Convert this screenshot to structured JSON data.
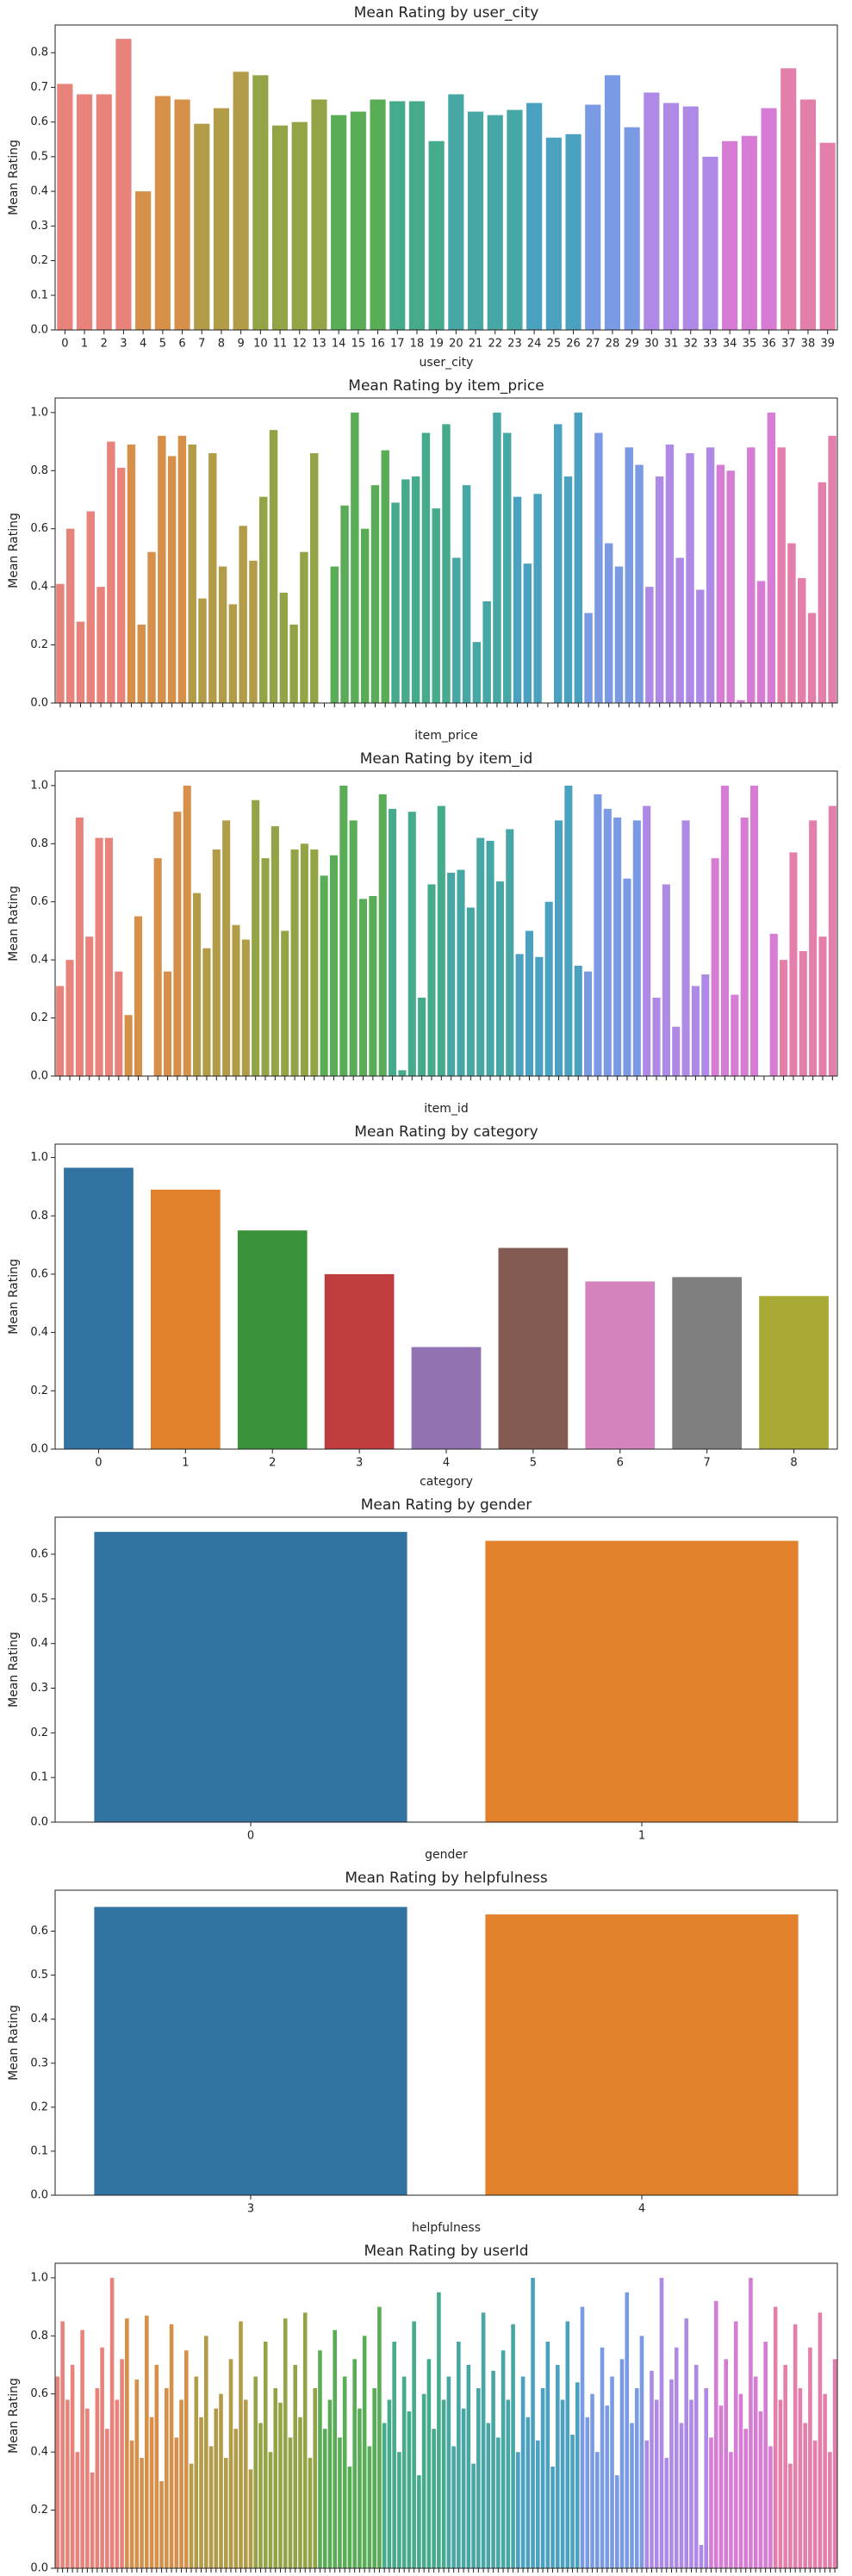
{
  "chart_data": [
    {
      "type": "bar",
      "title": "Mean Rating by user_city",
      "xlabel": "user_city",
      "ylabel": "Mean Rating",
      "categories": [
        "0",
        "1",
        "2",
        "3",
        "4",
        "5",
        "6",
        "7",
        "8",
        "9",
        "10",
        "11",
        "12",
        "13",
        "14",
        "15",
        "16",
        "17",
        "18",
        "19",
        "20",
        "21",
        "22",
        "23",
        "24",
        "25",
        "26",
        "27",
        "28",
        "29",
        "30",
        "31",
        "32",
        "33",
        "34",
        "35",
        "36",
        "37",
        "38",
        "39"
      ],
      "values": [
        0.71,
        0.68,
        0.68,
        0.84,
        0.4,
        0.675,
        0.665,
        0.595,
        0.64,
        0.745,
        0.735,
        0.59,
        0.6,
        0.665,
        0.62,
        0.63,
        0.665,
        0.66,
        0.66,
        0.545,
        0.68,
        0.63,
        0.62,
        0.635,
        0.655,
        0.555,
        0.565,
        0.65,
        0.735,
        0.585,
        0.685,
        0.655,
        0.645,
        0.5,
        0.545,
        0.56,
        0.64,
        0.755,
        0.665,
        0.54
      ],
      "ylim": [
        0,
        0.88
      ],
      "yticks": [
        {
          "value": 0,
          "label": "0.0"
        },
        0.1,
        0.2,
        0.3,
        0.4,
        0.5,
        0.6,
        0.7,
        0.8
      ],
      "palette": [
        "#e8837b",
        "#d6904a",
        "#b29c48",
        "#93a446",
        "#5aad57",
        "#45ab8c",
        "#47a7a5",
        "#4aa2c0",
        "#7a9be3",
        "#ae8ae6",
        "#d77cd5",
        "#e47fab"
      ]
    },
    {
      "type": "bar",
      "title": "Mean Rating by item_price",
      "xlabel": "item_price",
      "ylabel": "Mean Rating",
      "values": [
        0.41,
        0.6,
        0.28,
        0.66,
        0.4,
        0.9,
        0.81,
        0.89,
        0.27,
        0.52,
        0.92,
        0.85,
        0.92,
        0.89,
        0.36,
        0.86,
        0.47,
        0.34,
        0.61,
        0.49,
        0.71,
        0.94,
        0.38,
        0.27,
        0.52,
        0.86,
        0,
        0.47,
        0.68,
        1.0,
        0.6,
        0.75,
        0.87,
        0.69,
        0.77,
        0.78,
        0.93,
        0.67,
        0.96,
        0.5,
        0.75,
        0.21,
        0.35,
        1.0,
        0.93,
        0.71,
        0.48,
        0.72,
        0,
        0.96,
        0.78,
        1.0,
        0.31,
        0.93,
        0.55,
        0.47,
        0.88,
        0.82,
        0.4,
        0.78,
        0.89,
        0.5,
        0.86,
        0.39,
        0.88,
        0.82,
        0.8,
        0.01,
        0.88,
        0.42,
        1.0,
        0.88,
        0.55,
        0.43,
        0.31,
        0.76,
        0.92
      ],
      "ylim": [
        0,
        1.05
      ],
      "yticks": [
        {
          "value": 0,
          "label": "0.0"
        },
        0.2,
        0.4,
        0.6,
        0.8,
        {
          "value": 1,
          "label": "1.0"
        }
      ],
      "palette": [
        "#e8837b",
        "#d6904a",
        "#b29c48",
        "#93a446",
        "#5aad57",
        "#45ab8c",
        "#47a7a5",
        "#4aa2c0",
        "#7a9be3",
        "#ae8ae6",
        "#d77cd5",
        "#e47fab"
      ]
    },
    {
      "type": "bar",
      "title": "Mean Rating by item_id",
      "xlabel": "item_id",
      "ylabel": "Mean Rating",
      "values": [
        0.31,
        0.4,
        0.89,
        0.48,
        0.82,
        0.82,
        0.36,
        0.21,
        0.55,
        0,
        0.75,
        0.36,
        0.91,
        1.0,
        0.63,
        0.44,
        0.78,
        0.88,
        0.52,
        0.47,
        0.95,
        0.75,
        0.86,
        0.5,
        0.78,
        0.8,
        0.78,
        0.69,
        0.76,
        1.0,
        0.88,
        0.61,
        0.62,
        0.97,
        0.92,
        0.02,
        0.91,
        0.27,
        0.66,
        0.93,
        0.7,
        0.71,
        0.58,
        0.82,
        0.81,
        0.67,
        0.85,
        0.42,
        0.5,
        0.41,
        0.6,
        0.88,
        1.0,
        0.38,
        0.36,
        0.97,
        0.92,
        0.89,
        0.68,
        0.88,
        0.93,
        0.27,
        0.66,
        0.17,
        0.88,
        0.31,
        0.35,
        0.75,
        1.0,
        0.28,
        0.89,
        1.0,
        0,
        0.49,
        0.4,
        0.77,
        0.43,
        0.88,
        0.48,
        0.93
      ],
      "ylim": [
        0,
        1.05
      ],
      "yticks": [
        {
          "value": 0,
          "label": "0.0"
        },
        0.2,
        0.4,
        0.6,
        0.8,
        {
          "value": 1,
          "label": "1.0"
        }
      ],
      "palette": [
        "#e8837b",
        "#d6904a",
        "#b29c48",
        "#93a446",
        "#5aad57",
        "#45ab8c",
        "#47a7a5",
        "#4aa2c0",
        "#7a9be3",
        "#ae8ae6",
        "#d77cd5",
        "#e47fab"
      ]
    },
    {
      "type": "bar",
      "title": "Mean Rating by category",
      "xlabel": "category",
      "ylabel": "Mean Rating",
      "categories": [
        "0",
        "1",
        "2",
        "3",
        "4",
        "5",
        "6",
        "7",
        "8"
      ],
      "values": [
        0.965,
        0.89,
        0.75,
        0.6,
        0.35,
        0.69,
        0.575,
        0.59,
        0.525
      ],
      "ylim": [
        0,
        1.046
      ],
      "yticks": [
        {
          "value": 0,
          "label": "0.0"
        },
        0.2,
        0.4,
        0.6,
        0.8,
        {
          "value": 1,
          "label": "1.0"
        }
      ],
      "colors": [
        "#3274a1",
        "#e1812c",
        "#3a923a",
        "#c03d3e",
        "#9372b2",
        "#845b53",
        "#d684bd",
        "#7f7f7f",
        "#a9aa35"
      ]
    },
    {
      "type": "bar",
      "title": "Mean Rating by gender",
      "xlabel": "gender",
      "ylabel": "Mean Rating",
      "categories": [
        "0",
        "1"
      ],
      "values": [
        0.65,
        0.63
      ],
      "ylim": [
        0,
        0.683
      ],
      "yticks": [
        {
          "value": 0,
          "label": "0.0"
        },
        0.1,
        0.2,
        0.3,
        0.4,
        0.5,
        0.6
      ],
      "colors": [
        "#3274a1",
        "#e1812c"
      ]
    },
    {
      "type": "bar",
      "title": "Mean Rating by helpfulness",
      "xlabel": "helpfulness",
      "ylabel": "Mean Rating",
      "categories": [
        "3",
        "4"
      ],
      "values": [
        0.655,
        0.638
      ],
      "ylim": [
        0,
        0.693
      ],
      "yticks": [
        {
          "value": 0,
          "label": "0.0"
        },
        0.1,
        0.2,
        0.3,
        0.4,
        0.5,
        0.6
      ],
      "colors": [
        "#3274a1",
        "#e1812c"
      ]
    },
    {
      "type": "bar",
      "title": "Mean Rating by userId",
      "xlabel": "userId",
      "ylabel": "Mean Rating",
      "values": [
        0.66,
        0.85,
        0.58,
        0.7,
        0.4,
        0.82,
        0.55,
        0.33,
        0.62,
        0.76,
        0.48,
        1.0,
        0.58,
        0.72,
        0.86,
        0.44,
        0.65,
        0.38,
        0.87,
        0.52,
        0.7,
        0.3,
        0.62,
        0.84,
        0.45,
        0.58,
        0.75,
        0.36,
        0.66,
        0.52,
        0.8,
        0.42,
        0.55,
        0.6,
        0.38,
        0.72,
        0.48,
        0.85,
        0.58,
        0.34,
        0.66,
        0.5,
        0.78,
        0.4,
        0.62,
        0.57,
        0.86,
        0.45,
        0.7,
        0.52,
        0.88,
        0.38,
        0.62,
        0.75,
        0.48,
        0.58,
        0.82,
        0.45,
        0.66,
        0.35,
        0.72,
        0.55,
        0.8,
        0.42,
        0.62,
        0.9,
        0.5,
        0.58,
        0.78,
        0.4,
        0.66,
        0.54,
        0.85,
        0.32,
        0.6,
        0.72,
        0.48,
        0.95,
        0.58,
        0.66,
        0.42,
        0.78,
        0.55,
        0.7,
        0.36,
        0.62,
        0.88,
        0.5,
        0.68,
        0.45,
        0.75,
        0.58,
        0.84,
        0.4,
        0.66,
        0.52,
        1.0,
        0.44,
        0.62,
        0.78,
        0.35,
        0.7,
        0.58,
        0.85,
        0.46,
        0.64,
        0.9,
        0.52,
        0.6,
        0.4,
        0.76,
        0.56,
        0.66,
        0.32,
        0.72,
        0.95,
        0.5,
        0.62,
        0.8,
        0.44,
        0.68,
        0.58,
        1.0,
        0.38,
        0.65,
        0.76,
        0.5,
        0.86,
        0.58,
        0.7,
        0.08,
        0.62,
        0.45,
        0.92,
        0.56,
        0.72,
        0.4,
        0.85,
        0.6,
        0.48,
        1.0,
        0.66,
        0.54,
        0.78,
        0.42,
        0.9,
        0.58,
        0.7,
        0.36,
        0.84,
        0.62,
        0.5,
        0.76,
        0.44,
        0.88,
        0.6,
        0.4,
        0.72
      ],
      "ylim": [
        0,
        1.05
      ],
      "yticks": [
        {
          "value": 0,
          "label": "0.0"
        },
        0.2,
        0.4,
        0.6,
        0.8,
        {
          "value": 1,
          "label": "1.0"
        }
      ],
      "palette": [
        "#e8837b",
        "#d6904a",
        "#b29c48",
        "#93a446",
        "#5aad57",
        "#45ab8c",
        "#47a7a5",
        "#4aa2c0",
        "#7a9be3",
        "#ae8ae6",
        "#d77cd5",
        "#e47fab"
      ]
    }
  ]
}
